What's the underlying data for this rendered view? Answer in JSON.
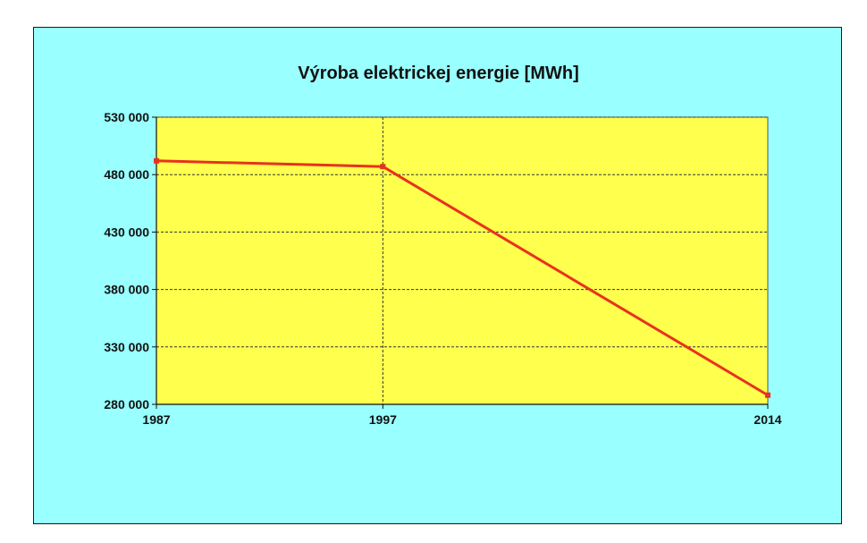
{
  "chart_data": {
    "type": "line",
    "title": "Výroba elektrickej energie [MWh]",
    "xlabel": "",
    "ylabel": "",
    "categories": [
      "1987",
      "1997",
      "2014"
    ],
    "series": [
      {
        "values": [
          492000,
          487000,
          288000
        ]
      }
    ],
    "ylim": [
      280000,
      530000
    ],
    "yticks": [
      {
        "value": 530000,
        "label": "530 000"
      },
      {
        "value": 480000,
        "label": "480 000"
      },
      {
        "value": 430000,
        "label": "430 000"
      },
      {
        "value": 380000,
        "label": "380 000"
      },
      {
        "value": 330000,
        "label": "330 000"
      },
      {
        "value": 280000,
        "label": "280 000"
      }
    ],
    "grid": true,
    "legend": "none",
    "colors": {
      "frame_background": "#99ffff",
      "plot_background": "#ffff4d",
      "line": "#e8321e",
      "grid": "#333333"
    }
  }
}
